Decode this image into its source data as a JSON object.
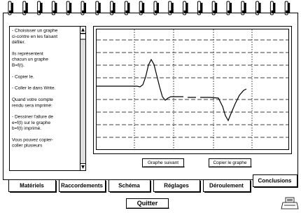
{
  "instructions": {
    "paragraphs": [
      [
        "- Choisisser un graphe",
        "ci-contre en les faisant",
        "défiler."
      ],
      [
        "Ils représentent",
        "chacun un graphe",
        "B=f(t)."
      ],
      [
        "- Copier le."
      ],
      [
        "- Coller le dans Write."
      ],
      [
        "Quand votre compte",
        "rendu sera imprimé:"
      ],
      [
        "- Dessiner l'allure de",
        "e=f(t) sur  le graphe",
        "b=f(t) imprimé."
      ],
      [
        "Vous pouvez copier-",
        "coller plusieurs"
      ]
    ]
  },
  "buttons": {
    "next_graph": "Graphe suivant",
    "copy_graph": "Copier le graphe",
    "quit": "Quitter"
  },
  "tabs": [
    "Matériels",
    "Raccordements",
    "Schéma",
    "Réglages",
    "Déroulement",
    "Conclusions"
  ]
}
